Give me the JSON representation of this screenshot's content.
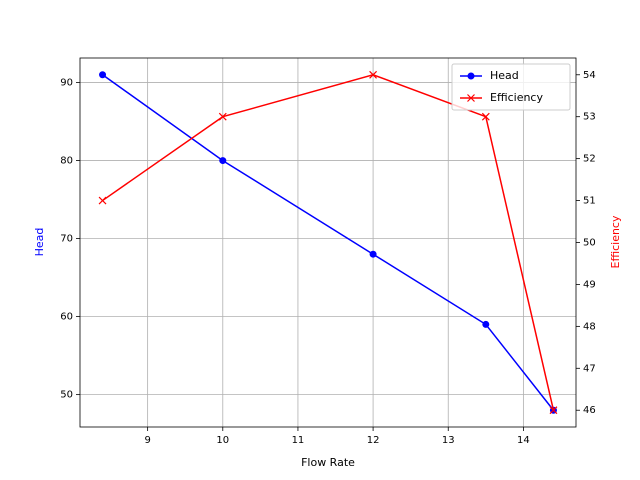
{
  "chart_data": {
    "type": "line",
    "x_label": "Flow Rate",
    "y_label": "Head",
    "y2_label": "Efficiency",
    "x": [
      8.4,
      10,
      12,
      13.5,
      14.4
    ],
    "series": [
      {
        "name": "Head",
        "color": "#0000ff",
        "marker": "o",
        "values": [
          91,
          80,
          68,
          59,
          48
        ]
      },
      {
        "name": "Efficiency",
        "color": "#ff0000",
        "marker": "x",
        "axis": "y2",
        "values": [
          51,
          53,
          54,
          53,
          46
        ]
      }
    ],
    "xlim": [
      8.1,
      14.7
    ],
    "xticks": [
      9,
      10,
      11,
      12,
      13,
      14
    ],
    "ylim": [
      45.85,
      93.15
    ],
    "yticks": [
      50,
      60,
      70,
      80,
      90
    ],
    "y2lim": [
      45.6,
      54.4
    ],
    "y2ticks": [
      46,
      47,
      48,
      49,
      50,
      51,
      52,
      53,
      54
    ],
    "grid": true,
    "legend": "upper right"
  }
}
